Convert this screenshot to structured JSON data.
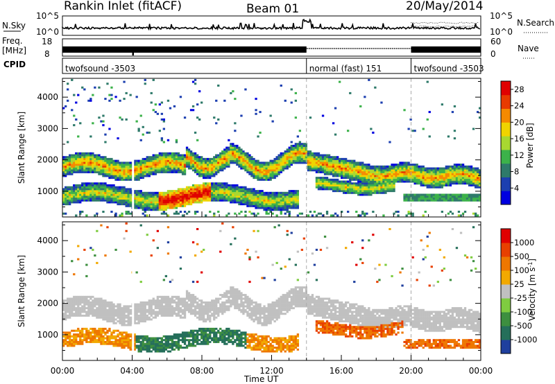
{
  "header": {
    "station": "Rankin Inlet (fitACF)",
    "beam": "Beam 01",
    "date": "20/May/2014"
  },
  "status_panels": {
    "nsky_label": "N.Sky",
    "nsky_ticks": [
      "10^5",
      "10^0"
    ],
    "nsearch_label": "N.Search",
    "nsearch_ticks": [
      "10^5",
      "10^0"
    ],
    "freq_label": "Freq.",
    "freq_unit": "[MHz]",
    "freq_ticks": [
      "18",
      "8"
    ],
    "nave_label": "Nave",
    "nave_ticks": [
      "60",
      "0"
    ],
    "cpid_label": "CPID",
    "cpid_segments": [
      {
        "name": "twofsound -3503",
        "start": 0,
        "end": 14
      },
      {
        "name": "normal (fast) 151",
        "start": 14,
        "end": 20
      },
      {
        "name": "twofsound -3503",
        "start": 20,
        "end": 24
      }
    ]
  },
  "chart_data": [
    {
      "type": "heatmap",
      "name": "Power",
      "ylabel": "Slant Range [km]",
      "y_ticks": [
        1000,
        2000,
        3000,
        4000
      ],
      "ylim": [
        180,
        4600
      ],
      "colorbar_label": "Power [dB]",
      "colorbar_ticks": [
        "28",
        "24",
        "20",
        "16",
        "12",
        "8",
        "4"
      ],
      "colorbar_range": [
        0,
        30
      ]
    },
    {
      "type": "heatmap",
      "name": "Velocity",
      "ylabel": "Slant Range [km]",
      "y_ticks": [
        1000,
        2000,
        3000,
        4000
      ],
      "ylim": [
        180,
        4600
      ],
      "colorbar_label": "Velocity [m s^-1]",
      "colorbar_ticks": [
        "1000",
        "500",
        "100",
        "25",
        "-25",
        "-100",
        "-500",
        "-1000"
      ]
    }
  ],
  "x_axis": {
    "label": "Time UT",
    "ticks": [
      "00:00",
      "04:00",
      "08:00",
      "12:00",
      "16:00",
      "20:00",
      "00:00"
    ],
    "range_hours": [
      0,
      24
    ]
  },
  "colors": {
    "power_scale": [
      "#0000e0",
      "#1c3fb0",
      "#2e7a6a",
      "#3cb24a",
      "#a8d830",
      "#f0d400",
      "#f58a00",
      "#e83a00",
      "#e00000"
    ],
    "velocity_scale": [
      "#1f3f9e",
      "#256f5a",
      "#3d8f3f",
      "#7fcc40",
      "#c0c0c0",
      "#f2a900",
      "#ee7700",
      "#e84000",
      "#e00000"
    ]
  }
}
